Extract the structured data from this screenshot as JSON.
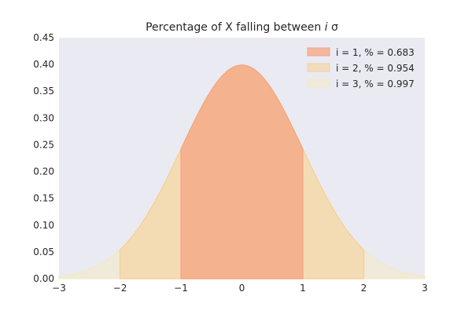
{
  "chart_data": {
    "type": "area",
    "title": "Percentage of X falling between ",
    "title_italic": "i",
    "title_suffix": " σ",
    "xlabel": "",
    "ylabel": "",
    "xlim": [
      -3,
      3
    ],
    "ylim": [
      0,
      0.45
    ],
    "x_ticks": [
      "−3",
      "−2",
      "−1",
      "0",
      "1",
      "2",
      "3"
    ],
    "y_ticks": [
      "0.00",
      "0.05",
      "0.10",
      "0.15",
      "0.20",
      "0.25",
      "0.30",
      "0.35",
      "0.40",
      "0.45"
    ],
    "grid": false,
    "legend_position": "top-right",
    "distribution": {
      "name": "standard normal pdf",
      "mean": 0,
      "std": 1
    },
    "series": [
      {
        "name": "i = 1, % = 0.683",
        "range": [
          -1,
          1
        ],
        "color": "#f4a582",
        "opacity": 0.75
      },
      {
        "name": "i = 2, % = 0.954",
        "range": [
          -2,
          2
        ],
        "color": "#f6cf95",
        "opacity": 0.55
      },
      {
        "name": "i = 3, % = 0.997",
        "range": [
          -3,
          3
        ],
        "color": "#f3e9c4",
        "opacity": 0.55
      }
    ],
    "background_color": "#eaeaf2"
  }
}
